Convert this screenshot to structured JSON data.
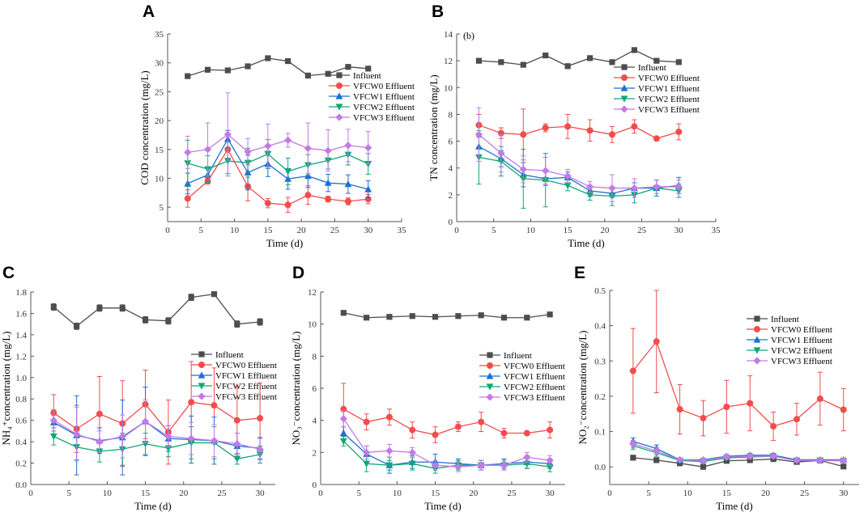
{
  "figure": {
    "series_names": [
      "Influent",
      "VFCW0 Effluent",
      "VFCW1 Effluent",
      "VFCW2 Effluent",
      "VFCW3 Effluent"
    ],
    "series_colors": [
      "#4d4d4d",
      "#f24c4c",
      "#1f6fd1",
      "#12a678",
      "#c479e6"
    ],
    "marker_shapes": [
      "square",
      "circle",
      "triangle-up",
      "triangle-down",
      "diamond"
    ]
  },
  "chart_data": [
    {
      "id": "A",
      "type": "line",
      "panel_label": "A",
      "title": "",
      "annotation": "",
      "xlabel": "Time (d)",
      "ylabel": "COD concentration (mg/L)",
      "xlim": [
        0,
        35
      ],
      "ylim": [
        2.5,
        35
      ],
      "xticks": [
        0,
        5,
        10,
        15,
        20,
        25,
        30,
        35
      ],
      "yticks": [
        5,
        10,
        15,
        20,
        25,
        30,
        35
      ],
      "x": [
        3,
        6,
        9,
        12,
        15,
        18,
        21,
        24,
        27,
        30
      ],
      "legend_position": "center-right",
      "series": [
        {
          "name": "Influent",
          "values": [
            27.7,
            28.8,
            28.7,
            29.4,
            30.8,
            30.3,
            27.8,
            28.1,
            29.3,
            29.0
          ],
          "errors": [
            0.3,
            0.2,
            0.2,
            0.2,
            0.2,
            0.2,
            0.2,
            0.2,
            0.2,
            0.2
          ]
        },
        {
          "name": "VFCW0 Effluent",
          "values": [
            6.5,
            9.5,
            15.0,
            8.6,
            5.7,
            5.4,
            7.1,
            6.4,
            6.0,
            6.4
          ],
          "errors": [
            1.5,
            0.5,
            1.5,
            2.5,
            0.8,
            1.3,
            1.6,
            0.5,
            0.6,
            0.8
          ]
        },
        {
          "name": "VFCW1 Effluent",
          "values": [
            9.1,
            10.6,
            16.8,
            11.0,
            12.5,
            9.9,
            10.4,
            9.2,
            9.0,
            8.1
          ],
          "errors": [
            1.8,
            1.3,
            1.5,
            3.0,
            2.2,
            1.8,
            2.0,
            1.5,
            1.6,
            1.5
          ]
        },
        {
          "name": "VFCW2 Effluent",
          "values": [
            12.6,
            11.6,
            13.0,
            12.7,
            14.2,
            11.2,
            12.3,
            13.1,
            14.1,
            12.5
          ],
          "errors": [
            4.0,
            2.3,
            2.2,
            2.5,
            2.5,
            2.3,
            1.8,
            1.5,
            1.8,
            1.8
          ]
        },
        {
          "name": "VFCW3 Effluent",
          "values": [
            14.5,
            15.0,
            17.6,
            14.6,
            15.6,
            16.6,
            15.2,
            14.8,
            15.7,
            15.3
          ],
          "errors": [
            2.8,
            4.6,
            7.2,
            2.3,
            3.8,
            1.2,
            4.4,
            3.6,
            2.8,
            2.8
          ]
        }
      ]
    },
    {
      "id": "B",
      "type": "line",
      "panel_label": "B",
      "title": "",
      "annotation": "(b)",
      "xlabel": "Time (d)",
      "ylabel": "TN concentration (mg/L)",
      "xlim": [
        0,
        35
      ],
      "ylim": [
        0,
        14
      ],
      "xticks": [
        0,
        5,
        10,
        15,
        20,
        25,
        30,
        35
      ],
      "yticks": [
        0,
        2,
        4,
        6,
        8,
        10,
        12,
        14
      ],
      "x": [
        3,
        6,
        9,
        12,
        15,
        18,
        21,
        24,
        27,
        30
      ],
      "legend_position": "upper-right",
      "series": [
        {
          "name": "Influent",
          "values": [
            12.0,
            11.9,
            11.7,
            12.4,
            11.6,
            12.2,
            11.9,
            12.8,
            12.0,
            11.9
          ],
          "errors": [
            0.1,
            0.1,
            0.1,
            0.1,
            0.1,
            0.1,
            0.1,
            0.1,
            0.1,
            0.1
          ]
        },
        {
          "name": "VFCW0 Effluent",
          "values": [
            7.2,
            6.6,
            6.5,
            7.0,
            7.1,
            6.8,
            6.5,
            7.1,
            6.2,
            6.7
          ],
          "errors": [
            0.8,
            0.4,
            1.9,
            0.3,
            0.9,
            0.8,
            0.6,
            0.5,
            0.1,
            0.6
          ]
        },
        {
          "name": "VFCW1 Effluent",
          "values": [
            5.6,
            4.7,
            3.5,
            3.2,
            3.3,
            2.3,
            2.1,
            2.5,
            2.5,
            2.7
          ],
          "errors": [
            0.7,
            0.6,
            0.9,
            0.5,
            0.4,
            0.4,
            0.3,
            0.4,
            0.6,
            0.6
          ]
        },
        {
          "name": "VFCW2 Effluent",
          "values": [
            4.8,
            4.5,
            3.2,
            3.1,
            2.7,
            2.0,
            1.9,
            2.0,
            2.5,
            2.3
          ],
          "errors": [
            2.0,
            1.1,
            2.2,
            2.0,
            0.4,
            0.4,
            0.7,
            0.6,
            0.6,
            0.5
          ]
        },
        {
          "name": "VFCW3 Effluent",
          "values": [
            6.5,
            5.1,
            3.9,
            3.8,
            3.4,
            2.6,
            2.5,
            2.5,
            2.6,
            2.6
          ],
          "errors": [
            2.0,
            1.4,
            1.0,
            1.0,
            0.5,
            0.4,
            1.0,
            0.7,
            0.5,
            0.5
          ]
        }
      ]
    },
    {
      "id": "C",
      "type": "line",
      "panel_label": "C",
      "title": "",
      "annotation": "",
      "xlabel": "Time (d)",
      "ylabel": "NH₄⁺concentration (mg/L)",
      "xlim": [
        0,
        32
      ],
      "ylim": [
        0,
        1.8
      ],
      "xticks": [
        0,
        5,
        10,
        15,
        20,
        25,
        30
      ],
      "yticks": [
        0,
        0.2,
        0.4,
        0.6,
        0.8,
        1.0,
        1.2,
        1.4,
        1.6,
        1.8
      ],
      "x": [
        3,
        6,
        9,
        12,
        15,
        18,
        21,
        24,
        27,
        30
      ],
      "legend_position": "center-right",
      "series": [
        {
          "name": "Influent",
          "values": [
            1.66,
            1.48,
            1.65,
            1.65,
            1.54,
            1.53,
            1.75,
            1.78,
            1.5,
            1.52
          ],
          "errors": [
            0.03,
            0.03,
            0.03,
            0.03,
            0.03,
            0.03,
            0.03,
            0.02,
            0.03,
            0.03
          ]
        },
        {
          "name": "VFCW0 Effluent",
          "values": [
            0.67,
            0.52,
            0.66,
            0.57,
            0.75,
            0.49,
            0.77,
            0.74,
            0.6,
            0.62
          ],
          "errors": [
            0.17,
            0.22,
            0.35,
            0.4,
            0.32,
            0.3,
            0.38,
            0.35,
            0.32,
            0.33
          ]
        },
        {
          "name": "VFCW1 Effluent",
          "values": [
            0.58,
            0.46,
            0.41,
            0.44,
            0.59,
            0.43,
            0.42,
            0.41,
            0.36,
            0.34
          ],
          "errors": [
            0.12,
            0.37,
            0.12,
            0.35,
            0.32,
            0.12,
            0.22,
            0.22,
            0.12,
            0.1
          ]
        },
        {
          "name": "VFCW2 Effluent",
          "values": [
            0.45,
            0.35,
            0.31,
            0.33,
            0.38,
            0.34,
            0.39,
            0.39,
            0.24,
            0.28
          ],
          "errors": [
            0.08,
            0.12,
            0.1,
            0.15,
            0.1,
            0.08,
            0.15,
            0.15,
            0.05,
            0.08
          ]
        },
        {
          "name": "VFCW3 Effluent",
          "values": [
            0.6,
            0.47,
            0.4,
            0.45,
            0.59,
            0.45,
            0.43,
            0.41,
            0.38,
            0.33
          ],
          "errors": [
            0.1,
            0.25,
            0.1,
            0.2,
            0.2,
            0.1,
            0.15,
            0.15,
            0.1,
            0.1
          ]
        }
      ]
    },
    {
      "id": "D",
      "type": "line",
      "panel_label": "D",
      "title": "",
      "annotation": "",
      "xlabel": "Time (d)",
      "ylabel": "NO₃⁻concentration (mg/L)",
      "xlim": [
        0,
        32
      ],
      "ylim": [
        0,
        12
      ],
      "xticks": [
        0,
        5,
        10,
        15,
        20,
        25,
        30
      ],
      "yticks": [
        0,
        2,
        4,
        6,
        8,
        10,
        12
      ],
      "x": [
        3,
        6,
        9,
        12,
        15,
        18,
        21,
        24,
        27,
        30
      ],
      "legend_position": "center-right",
      "series": [
        {
          "name": "Influent",
          "values": [
            10.7,
            10.4,
            10.45,
            10.5,
            10.45,
            10.5,
            10.55,
            10.4,
            10.4,
            10.6
          ],
          "errors": [
            0.08,
            0.08,
            0.08,
            0.08,
            0.08,
            0.08,
            0.08,
            0.08,
            0.08,
            0.08
          ]
        },
        {
          "name": "VFCW0 Effluent",
          "values": [
            4.7,
            3.9,
            4.2,
            3.4,
            3.1,
            3.6,
            3.9,
            3.2,
            3.2,
            3.4
          ],
          "errors": [
            1.6,
            0.5,
            0.5,
            0.5,
            0.5,
            0.3,
            0.6,
            0.3,
            0.1,
            0.5
          ]
        },
        {
          "name": "VFCW1 Effluent",
          "values": [
            3.2,
            1.9,
            1.2,
            1.4,
            1.4,
            1.3,
            1.2,
            1.3,
            1.4,
            1.3
          ],
          "errors": [
            0.4,
            0.5,
            0.5,
            0.4,
            0.5,
            0.3,
            0.3,
            0.3,
            0.4,
            0.3
          ]
        },
        {
          "name": "VFCW2 Effluent",
          "values": [
            2.7,
            1.3,
            1.2,
            1.3,
            1.0,
            1.2,
            1.2,
            1.2,
            1.3,
            1.1
          ],
          "errors": [
            0.3,
            0.5,
            0.3,
            0.4,
            0.3,
            0.3,
            0.3,
            0.3,
            0.3,
            0.3
          ]
        },
        {
          "name": "VFCW3 Effluent",
          "values": [
            4.1,
            2.0,
            2.1,
            2.0,
            1.2,
            1.1,
            1.2,
            1.2,
            1.7,
            1.5
          ],
          "errors": [
            0.5,
            0.4,
            0.4,
            0.3,
            0.3,
            0.3,
            0.3,
            0.3,
            0.3,
            0.3
          ]
        }
      ]
    },
    {
      "id": "E",
      "type": "line",
      "panel_label": "E",
      "title": "",
      "annotation": "",
      "xlabel": "Time (d)",
      "ylabel": "NO₂⁻concentration (mg/L)",
      "xlim": [
        0,
        32
      ],
      "ylim": [
        -0.05,
        0.5
      ],
      "xticks": [
        0,
        5,
        10,
        15,
        20,
        25,
        30
      ],
      "yticks": [
        0.0,
        0.1,
        0.2,
        0.3,
        0.4,
        0.5
      ],
      "x": [
        3,
        6,
        9,
        12,
        15,
        18,
        21,
        24,
        27,
        30
      ],
      "legend_position": "upper-right",
      "series": [
        {
          "name": "Influent",
          "values": [
            0.026,
            0.019,
            0.01,
            0.0,
            0.017,
            0.019,
            0.022,
            0.014,
            0.018,
            0.001
          ],
          "errors": [
            0.003,
            0.003,
            0.003,
            0.003,
            0.003,
            0.003,
            0.003,
            0.003,
            0.003,
            0.003
          ]
        },
        {
          "name": "VFCW0 Effluent",
          "values": [
            0.272,
            0.355,
            0.163,
            0.138,
            0.17,
            0.18,
            0.115,
            0.135,
            0.193,
            0.162
          ],
          "errors": [
            0.12,
            0.145,
            0.07,
            0.05,
            0.075,
            0.078,
            0.04,
            0.045,
            0.075,
            0.06
          ]
        },
        {
          "name": "VFCW1 Effluent",
          "values": [
            0.072,
            0.052,
            0.02,
            0.02,
            0.03,
            0.033,
            0.033,
            0.02,
            0.02,
            0.02
          ],
          "errors": [
            0.01,
            0.01,
            0.005,
            0.005,
            0.005,
            0.005,
            0.005,
            0.005,
            0.005,
            0.005
          ]
        },
        {
          "name": "VFCW2 Effluent",
          "values": [
            0.06,
            0.04,
            0.018,
            0.015,
            0.025,
            0.028,
            0.03,
            0.018,
            0.018,
            0.017
          ],
          "errors": [
            0.01,
            0.01,
            0.005,
            0.005,
            0.005,
            0.005,
            0.005,
            0.005,
            0.005,
            0.005
          ]
        },
        {
          "name": "VFCW3 Effluent",
          "values": [
            0.065,
            0.045,
            0.02,
            0.018,
            0.028,
            0.03,
            0.03,
            0.018,
            0.018,
            0.018
          ],
          "errors": [
            0.01,
            0.01,
            0.005,
            0.005,
            0.005,
            0.005,
            0.005,
            0.005,
            0.005,
            0.005
          ]
        }
      ]
    }
  ]
}
